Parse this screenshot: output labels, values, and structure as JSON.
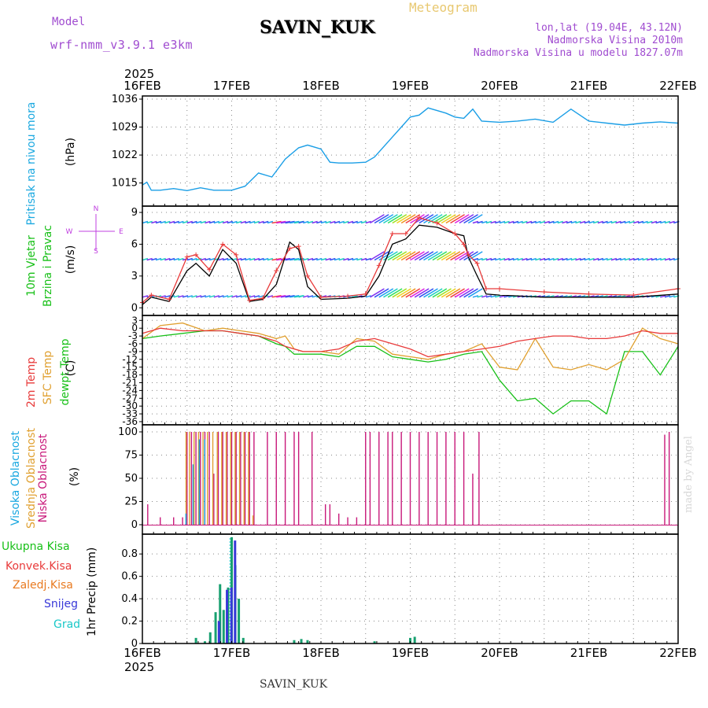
{
  "header": {
    "model_label": "Model",
    "model_name": "wrf-nmm_v3.9.1 e3km",
    "station": "SAVIN_KUK",
    "title": "Meteogram",
    "lonlat": "lon,lat (19.04E, 43.12N)",
    "elevation": "Nadmorska Visina 2010m",
    "model_elevation": "Nadmorska Visina u modelu 1827.07m"
  },
  "footer": {
    "station": "SAVIN_KUK",
    "credit": "made by Angel"
  },
  "time_axis": {
    "year": "2025",
    "ticks": [
      "16FEB",
      "17FEB",
      "18FEB",
      "19FEB",
      "20FEB",
      "21FEB",
      "22FEB"
    ]
  },
  "panel_labels": {
    "pressure": [
      "Pritisak na nivou mora",
      "(hPa)"
    ],
    "wind": [
      "10m Vjetar",
      "Brzina i Pravac",
      "(m/s)"
    ],
    "compass": [
      "N",
      "W",
      "E",
      "S"
    ],
    "temp": [
      "2m Temp",
      "SFC Temp",
      "dewpt Temp",
      "(C)"
    ],
    "cloud": [
      "Visoka Oblacnost",
      "Srednja Oblacnost",
      "Niska Oblacnost",
      "(%)"
    ],
    "precip": [
      "Ukupna Kisa",
      "Konvek.Kisa",
      "Zaledj.Kisa",
      "Snijeg",
      "Grad",
      "1hr Precip (mm)"
    ]
  },
  "colors": {
    "pressure": "#1a9ee6",
    "temp2m": "#e83a3a",
    "sfc": "#e0a030",
    "dewpt": "#18c018",
    "high_cloud": "#1aa8e0",
    "mid_cloud": "#e0a030",
    "low_cloud": "#c8187a",
    "precip_total": "#18a070",
    "snow": "#3838d8"
  },
  "chart_data": [
    {
      "type": "line",
      "title": "Pritisak na nivou mora",
      "ylabel": "hPa",
      "ylim": [
        1010,
        1036
      ],
      "yticks": [
        1015,
        1022,
        1029,
        1036
      ],
      "x": [
        0,
        0.05,
        0.1,
        0.2,
        0.35,
        0.5,
        0.65,
        0.8,
        1.0,
        1.15,
        1.3,
        1.45,
        1.6,
        1.75,
        1.85,
        2.0,
        2.1,
        2.2,
        2.35,
        2.5,
        2.6,
        2.8,
        3.0,
        3.1,
        3.2,
        3.4,
        3.5,
        3.6,
        3.7,
        3.8,
        4.0,
        4.2,
        4.4,
        4.6,
        4.8,
        5.0,
        5.2,
        5.4,
        5.6,
        5.8,
        6.0
      ],
      "series": [
        {
          "name": "pressure",
          "values": [
            1014.5,
            1015.2,
            1013.2,
            1013.2,
            1013.6,
            1013.1,
            1013.8,
            1013.2,
            1013.2,
            1014.2,
            1017.5,
            1016.5,
            1021.0,
            1023.8,
            1024.5,
            1023.5,
            1020.2,
            1020.0,
            1020.0,
            1020.2,
            1021.5,
            1026.5,
            1031.5,
            1032.0,
            1033.8,
            1032.5,
            1031.5,
            1031.2,
            1033.5,
            1030.5,
            1030.2,
            1030.5,
            1031.0,
            1030.2,
            1033.5,
            1030.5,
            1030.0,
            1029.5,
            1030.0,
            1030.3,
            1030.0
          ]
        }
      ]
    },
    {
      "type": "line",
      "title": "10m Vjetar Brzina i Pravac",
      "ylabel": "m/s",
      "ylim": [
        -0.5,
        9.3
      ],
      "yticks": [
        0,
        3,
        6,
        9
      ],
      "x": [
        0,
        0.1,
        0.3,
        0.5,
        0.6,
        0.75,
        0.9,
        1.05,
        1.2,
        1.35,
        1.5,
        1.65,
        1.75,
        1.85,
        2.0,
        2.3,
        2.5,
        2.65,
        2.8,
        2.95,
        3.1,
        3.3,
        3.5,
        3.6,
        3.65,
        3.75,
        3.85,
        4.0,
        4.5,
        5.0,
        5.5,
        6.0
      ],
      "series": [
        {
          "name": "wind speed",
          "values": [
            0.5,
            1.2,
            0.8,
            4.8,
            5.0,
            3.6,
            6.0,
            5.0,
            0.7,
            0.9,
            3.5,
            5.6,
            5.8,
            3.0,
            1.0,
            1.1,
            1.3,
            4.0,
            7.0,
            7.0,
            8.5,
            8.0,
            7.0,
            6.0,
            5.0,
            4.2,
            1.8,
            1.8,
            1.5,
            1.3,
            1.2,
            1.8
          ]
        },
        {
          "name": "gust",
          "values": [
            0.3,
            1.0,
            0.6,
            3.5,
            4.2,
            3.0,
            5.5,
            4.2,
            0.6,
            0.8,
            2.2,
            6.2,
            5.5,
            2.0,
            0.8,
            0.9,
            1.1,
            3.0,
            6.0,
            6.5,
            7.8,
            7.6,
            7.0,
            6.8,
            4.8,
            3.0,
            1.3,
            1.2,
            1.0,
            1.0,
            1.0,
            1.3
          ]
        }
      ],
      "barb_rows": [
        1,
        4.5,
        8
      ]
    },
    {
      "type": "line",
      "title": "2m Temp / SFC Temp / dewpt Temp",
      "ylabel": "C",
      "ylim": [
        -36,
        4
      ],
      "yticks": [
        3,
        0,
        -3,
        -6,
        -9,
        -12,
        -15,
        -18,
        -21,
        -24,
        -27,
        -30,
        -33,
        -36
      ],
      "x": [
        0,
        0.2,
        0.45,
        0.7,
        0.9,
        1.1,
        1.3,
        1.5,
        1.6,
        1.7,
        1.8,
        2.0,
        2.2,
        2.4,
        2.6,
        2.8,
        3.0,
        3.2,
        3.4,
        3.6,
        3.8,
        4.0,
        4.2,
        4.4,
        4.6,
        4.8,
        5.0,
        5.2,
        5.4,
        5.6,
        5.8,
        6.0
      ],
      "series": [
        {
          "name": "2m Temp",
          "values": [
            -2,
            0,
            -1,
            -1,
            -1,
            -2,
            -3,
            -5,
            -7,
            -8,
            -9,
            -9,
            -8,
            -5,
            -4,
            -6,
            -8,
            -11,
            -10,
            -9,
            -8,
            -7,
            -5,
            -4,
            -3,
            -3,
            -4,
            -4,
            -3,
            -1,
            -2,
            -2
          ]
        },
        {
          "name": "SFC Temp",
          "values": [
            -4,
            1,
            2,
            -1,
            0,
            -1,
            -2,
            -4,
            -3,
            -8,
            -9,
            -9,
            -10,
            -4,
            -5,
            -10,
            -11,
            -12,
            -10,
            -9,
            -6,
            -15,
            -16,
            -4,
            -15,
            -16,
            -14,
            -16,
            -12,
            0,
            -4,
            -6
          ]
        },
        {
          "name": "dewpt Temp",
          "values": [
            -4,
            -3,
            -2,
            -1,
            -1,
            -2,
            -3,
            -6,
            -7,
            -10,
            -10,
            -10,
            -11,
            -7,
            -7,
            -11,
            -12,
            -13,
            -12,
            -10,
            -9,
            -20,
            -28,
            -27,
            -33,
            -28,
            -28,
            -33,
            -9,
            -9,
            -18,
            -7
          ]
        }
      ]
    },
    {
      "type": "bar",
      "title": "Oblacnost",
      "ylabel": "%",
      "ylim": [
        0,
        100
      ],
      "yticks": [
        0,
        25,
        50,
        75,
        100
      ],
      "series": [
        {
          "name": "Niska Oblacnost",
          "x": [
            0.06,
            0.2,
            0.35,
            0.45,
            0.5,
            0.55,
            0.6,
            0.65,
            0.7,
            0.75,
            0.8,
            0.85,
            0.9,
            0.95,
            1.0,
            1.05,
            1.1,
            1.15,
            1.2,
            1.25,
            1.4,
            1.5,
            1.6,
            1.7,
            1.75,
            1.9,
            2.05,
            2.1,
            2.2,
            2.3,
            2.4,
            2.5,
            2.55,
            2.65,
            2.75,
            2.8,
            2.9,
            3.0,
            3.1,
            3.2,
            3.3,
            3.4,
            3.5,
            3.6,
            3.7,
            3.77,
            5.85,
            5.9
          ],
          "values": [
            22,
            8,
            8,
            8,
            100,
            100,
            100,
            100,
            100,
            100,
            55,
            100,
            100,
            100,
            100,
            100,
            100,
            100,
            100,
            100,
            100,
            100,
            100,
            100,
            100,
            100,
            22,
            22,
            12,
            8,
            8,
            100,
            100,
            100,
            100,
            100,
            100,
            100,
            100,
            100,
            100,
            100,
            100,
            100,
            55,
            100,
            97,
            100
          ]
        },
        {
          "name": "Srednja Oblacnost",
          "x": [
            0.48,
            0.52,
            0.57,
            0.62,
            0.67,
            0.72,
            0.78,
            0.83,
            0.88,
            0.93,
            0.98,
            1.03,
            1.08,
            1.13,
            1.18,
            1.23
          ],
          "values": [
            100,
            100,
            100,
            100,
            100,
            100,
            100,
            100,
            100,
            100,
            100,
            100,
            100,
            100,
            100,
            10
          ]
        },
        {
          "name": "Visoka Oblacnost",
          "x": [
            0.47,
            0.55,
            0.62,
            0.68
          ],
          "values": [
            12,
            65,
            92,
            92
          ]
        }
      ]
    },
    {
      "type": "bar",
      "title": "1hr Precip",
      "ylabel": "mm",
      "ylim": [
        0,
        0.97
      ],
      "yticks": [
        0,
        0.2,
        0.4,
        0.6,
        0.8
      ],
      "series": [
        {
          "name": "Ukupna Kisa",
          "x": [
            0.6,
            0.7,
            0.76,
            0.82,
            0.87,
            0.91,
            0.96,
            1.0,
            1.04,
            1.08,
            1.13,
            1.7,
            1.78,
            1.85,
            2.6,
            3.0,
            3.05
          ],
          "values": [
            0.05,
            0.02,
            0.1,
            0.28,
            0.53,
            0.3,
            0.5,
            0.95,
            0.7,
            0.4,
            0.05,
            0.03,
            0.04,
            0.03,
            0.02,
            0.05,
            0.06
          ]
        },
        {
          "name": "Snijeg",
          "x": [
            0.84,
            0.93,
            0.98,
            1.02
          ],
          "values": [
            0.2,
            0.48,
            0.5,
            0.92
          ]
        }
      ]
    }
  ]
}
